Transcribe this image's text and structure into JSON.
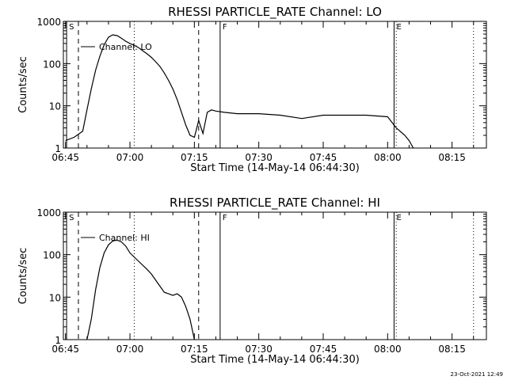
{
  "footer": {
    "timestamp": "23-Oct-2021 12:49"
  },
  "chart_data": [
    {
      "type": "line",
      "title": "RHESSI PARTICLE_RATE Channel: LO",
      "xlabel": "Start Time (14-May-14 06:44:30)",
      "ylabel": "Counts/sec",
      "yscale": "log",
      "ylim": [
        1,
        1000
      ],
      "xlim": [
        "06:44:30",
        "08:23:00"
      ],
      "x_ticks": [
        "06:45",
        "07:00",
        "07:15",
        "07:30",
        "07:45",
        "08:00",
        "08:15"
      ],
      "y_ticks": [
        "1",
        "10",
        "100",
        "1000"
      ],
      "legend": {
        "entries": [
          "Channel: LO"
        ],
        "position": "top-left"
      },
      "markers": [
        {
          "label": "S",
          "time": "06:45:15",
          "style": "solid"
        },
        {
          "label": "",
          "time": "06:48:00",
          "style": "dashed"
        },
        {
          "label": "",
          "time": "07:01:00",
          "style": "dotted"
        },
        {
          "label": "",
          "time": "07:16:00",
          "style": "dashed"
        },
        {
          "label": "F",
          "time": "07:21:00",
          "style": "solid"
        },
        {
          "label": "E",
          "time": "08:01:30",
          "style": "solid"
        },
        {
          "label": "",
          "time": "08:02:00",
          "style": "dotted"
        },
        {
          "label": "",
          "time": "08:20:00",
          "style": "dotted"
        }
      ],
      "series": [
        {
          "name": "Channel: LO",
          "x": [
            "06:45:00",
            "06:47:00",
            "06:49:00",
            "06:50:00",
            "06:51:00",
            "06:52:00",
            "06:53:00",
            "06:54:00",
            "06:55:00",
            "06:56:00",
            "06:57:00",
            "06:58:00",
            "06:59:00",
            "07:00:00",
            "07:01:00",
            "07:02:00",
            "07:03:00",
            "07:04:00",
            "07:05:00",
            "07:06:00",
            "07:07:00",
            "07:08:00",
            "07:09:00",
            "07:10:00",
            "07:11:00",
            "07:12:00",
            "07:13:00",
            "07:14:00",
            "07:15:00",
            "07:16:00",
            "07:17:00",
            "07:18:00",
            "07:19:00",
            "07:20:00",
            "07:22:00",
            "07:25:00",
            "07:30:00",
            "07:35:00",
            "07:40:00",
            "07:45:00",
            "07:50:00",
            "07:55:00",
            "08:00:00",
            "08:02:00",
            "08:04:00",
            "08:05:00",
            "08:06:00"
          ],
          "y": [
            1.5,
            1.8,
            2.5,
            8,
            25,
            70,
            150,
            280,
            420,
            480,
            460,
            400,
            340,
            300,
            270,
            240,
            200,
            170,
            140,
            110,
            85,
            60,
            40,
            25,
            14,
            7,
            3.5,
            2,
            1.8,
            4.5,
            2.2,
            7,
            8,
            7.5,
            7,
            6.5,
            6.5,
            6,
            5,
            6,
            6,
            6,
            5.5,
            3,
            2,
            1.5,
            1
          ]
        }
      ]
    },
    {
      "type": "line",
      "title": "RHESSI PARTICLE_RATE Channel: HI",
      "xlabel": "Start Time (14-May-14 06:44:30)",
      "ylabel": "Counts/sec",
      "yscale": "log",
      "ylim": [
        1,
        1000
      ],
      "xlim": [
        "06:44:30",
        "08:23:00"
      ],
      "x_ticks": [
        "06:45",
        "07:00",
        "07:15",
        "07:30",
        "07:45",
        "08:00",
        "08:15"
      ],
      "y_ticks": [
        "1",
        "10",
        "100",
        "1000"
      ],
      "legend": {
        "entries": [
          "Channel: HI"
        ],
        "position": "top-left"
      },
      "markers": [
        {
          "label": "S",
          "time": "06:45:15",
          "style": "solid"
        },
        {
          "label": "",
          "time": "06:48:00",
          "style": "dashed"
        },
        {
          "label": "",
          "time": "07:01:00",
          "style": "dotted"
        },
        {
          "label": "",
          "time": "07:16:00",
          "style": "dashed"
        },
        {
          "label": "F",
          "time": "07:21:00",
          "style": "solid"
        },
        {
          "label": "E",
          "time": "08:01:30",
          "style": "solid"
        },
        {
          "label": "",
          "time": "08:02:00",
          "style": "dotted"
        },
        {
          "label": "",
          "time": "08:20:00",
          "style": "dotted"
        }
      ],
      "series": [
        {
          "name": "Channel: HI",
          "x": [
            "06:50:00",
            "06:51:00",
            "06:52:00",
            "06:53:00",
            "06:54:00",
            "06:55:00",
            "06:56:00",
            "06:57:00",
            "06:58:00",
            "06:59:00",
            "07:00:00",
            "07:02:00",
            "07:04:00",
            "07:05:00",
            "07:06:00",
            "07:07:00",
            "07:08:00",
            "07:09:00",
            "07:10:00",
            "07:11:00",
            "07:12:00",
            "07:13:00",
            "07:14:00",
            "07:15:00"
          ],
          "y": [
            1,
            3,
            15,
            50,
            110,
            170,
            210,
            220,
            200,
            160,
            110,
            70,
            45,
            35,
            25,
            18,
            13,
            12,
            11,
            12,
            10,
            6,
            3,
            1
          ]
        }
      ]
    }
  ]
}
